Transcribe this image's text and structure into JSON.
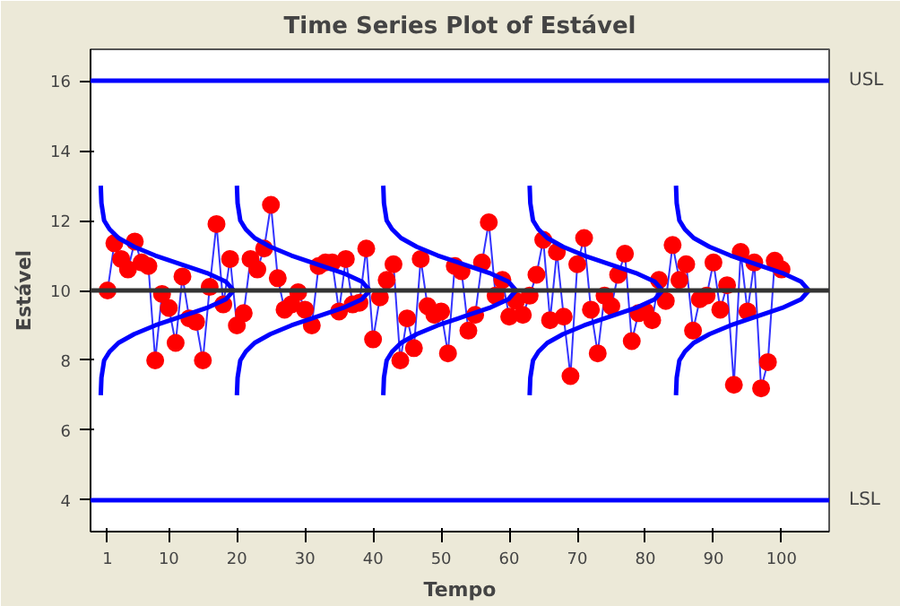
{
  "chart_data": {
    "type": "line",
    "title": "Time Series Plot of Estável",
    "xlabel": "Tempo",
    "ylabel": "Estável",
    "x": [
      1,
      2,
      3,
      4,
      5,
      6,
      7,
      8,
      9,
      10,
      11,
      12,
      13,
      14,
      15,
      16,
      17,
      18,
      19,
      20,
      21,
      22,
      23,
      24,
      25,
      26,
      27,
      28,
      29,
      30,
      31,
      32,
      33,
      34,
      35,
      36,
      37,
      38,
      39,
      40,
      41,
      42,
      43,
      44,
      45,
      46,
      47,
      48,
      49,
      50,
      51,
      52,
      53,
      54,
      55,
      56,
      57,
      58,
      59,
      60,
      61,
      62,
      63,
      64,
      65,
      66,
      67,
      68,
      69,
      70,
      71,
      72,
      73,
      74,
      75,
      76,
      77,
      78,
      79,
      80,
      81,
      82,
      83,
      84,
      85,
      86,
      87,
      88,
      89,
      90,
      91,
      92,
      93,
      94,
      95,
      96,
      97,
      98,
      99,
      100
    ],
    "xlim": [
      -1.5,
      107
    ],
    "ylim": [
      3.1,
      16.9
    ],
    "xticks": [
      1,
      10,
      20,
      30,
      40,
      50,
      60,
      70,
      80,
      90,
      100
    ],
    "yticks": [
      4,
      6,
      8,
      10,
      12,
      14,
      16
    ],
    "grid": false,
    "series": [
      {
        "color": "#ff0000",
        "marker": "circle",
        "values": [
          10.0,
          11.35,
          10.9,
          10.6,
          11.4,
          10.8,
          10.7,
          8.0,
          9.9,
          9.5,
          8.5,
          10.4,
          9.2,
          9.1,
          8.0,
          10.1,
          11.9,
          9.6,
          10.9,
          9.0,
          9.35,
          10.9,
          10.6,
          11.2,
          12.45,
          10.35,
          9.45,
          9.6,
          9.95,
          9.45,
          9.0,
          10.7,
          10.8,
          10.8,
          9.4,
          10.9,
          9.6,
          9.65,
          11.2,
          8.6,
          9.8,
          10.3,
          10.75,
          8.0,
          9.2,
          8.35,
          10.9,
          9.55,
          9.3,
          9.4,
          8.2,
          10.7,
          10.55,
          8.85,
          9.3,
          10.8,
          11.95,
          9.85,
          10.3,
          9.25,
          9.7,
          9.3,
          9.85,
          10.45,
          11.45,
          9.15,
          11.1,
          9.25,
          7.55,
          10.75,
          11.5,
          9.45,
          8.2,
          9.85,
          9.55,
          10.45,
          11.05,
          8.55,
          9.35,
          9.4,
          9.15,
          10.3,
          9.7,
          11.3,
          10.3,
          10.75,
          8.85,
          9.75,
          9.85,
          10.8,
          9.45,
          10.15,
          7.3,
          11.1,
          9.4,
          10.8,
          7.2,
          7.95,
          10.85,
          10.6
        ]
      },
      {
        "type": "line",
        "color": "#0000ff",
        "marker": "none",
        "x": [
          0,
          0.1,
          0.5,
          1.3,
          2.6,
          4.9,
          8.0,
          11.8,
          15.6,
          18.4,
          19.5,
          18.4,
          15.6,
          11.8,
          8.0,
          4.9,
          2.6,
          1.3,
          0.5,
          0.1,
          0
        ],
        "values": [
          7,
          7.5,
          8,
          8.25,
          8.5,
          8.75,
          9,
          9.25,
          9.5,
          9.75,
          10,
          10.25,
          10.5,
          10.75,
          11,
          11.25,
          11.5,
          11.75,
          12,
          12.5,
          13
        ]
      },
      {
        "type": "line",
        "color": "#0000ff",
        "marker": "none",
        "x": [
          20,
          20.1,
          20.5,
          21.3,
          22.6,
          24.9,
          28.0,
          31.8,
          35.6,
          38.4,
          39.5,
          38.4,
          35.6,
          31.8,
          28.0,
          24.9,
          22.6,
          21.3,
          20.5,
          20.1,
          20
        ],
        "values": [
          7,
          7.5,
          8,
          8.25,
          8.5,
          8.75,
          9,
          9.25,
          9.5,
          9.75,
          10,
          10.25,
          10.5,
          10.75,
          11,
          11.25,
          11.5,
          11.75,
          12,
          12.5,
          13
        ]
      },
      {
        "type": "line",
        "color": "#0000ff",
        "marker": "none",
        "x": [
          41.5,
          41.6,
          42.0,
          42.8,
          44.1,
          46.4,
          49.5,
          53.3,
          57.1,
          59.9,
          61.0,
          59.9,
          57.1,
          53.3,
          49.5,
          46.4,
          44.1,
          42.8,
          42.0,
          41.6,
          41.5
        ],
        "values": [
          7,
          7.5,
          8,
          8.25,
          8.5,
          8.75,
          9,
          9.25,
          9.5,
          9.75,
          10,
          10.25,
          10.5,
          10.75,
          11,
          11.25,
          11.5,
          11.75,
          12,
          12.5,
          13
        ]
      },
      {
        "type": "line",
        "color": "#0000ff",
        "marker": "none",
        "x": [
          63,
          63.1,
          63.5,
          64.3,
          65.6,
          67.9,
          71.0,
          74.8,
          78.6,
          81.4,
          82.5,
          81.4,
          78.6,
          74.8,
          71.0,
          67.9,
          65.6,
          64.3,
          63.5,
          63.1,
          63
        ],
        "values": [
          7,
          7.5,
          8,
          8.25,
          8.5,
          8.75,
          9,
          9.25,
          9.5,
          9.75,
          10,
          10.25,
          10.5,
          10.75,
          11,
          11.25,
          11.5,
          11.75,
          12,
          12.5,
          13
        ]
      },
      {
        "type": "line",
        "color": "#0000ff",
        "marker": "none",
        "x": [
          84.5,
          84.6,
          85.0,
          85.8,
          87.1,
          89.4,
          92.5,
          96.3,
          100.1,
          102.9,
          104.0,
          102.9,
          100.1,
          96.3,
          92.5,
          89.4,
          87.1,
          85.8,
          85.0,
          84.6,
          84.5
        ],
        "values": [
          7,
          7.5,
          8,
          8.25,
          8.5,
          8.75,
          9,
          9.25,
          9.5,
          9.75,
          10,
          10.25,
          10.5,
          10.75,
          11,
          11.25,
          11.5,
          11.75,
          12,
          12.5,
          13
        ]
      }
    ],
    "ref_lines": [
      {
        "axis": "y",
        "value": 16,
        "label": "USL",
        "color": "#0000ff"
      },
      {
        "axis": "y",
        "value": 10,
        "label": null,
        "color": "#333333"
      },
      {
        "axis": "y",
        "value": 4,
        "label": "LSL",
        "color": "#0000ff"
      }
    ]
  }
}
